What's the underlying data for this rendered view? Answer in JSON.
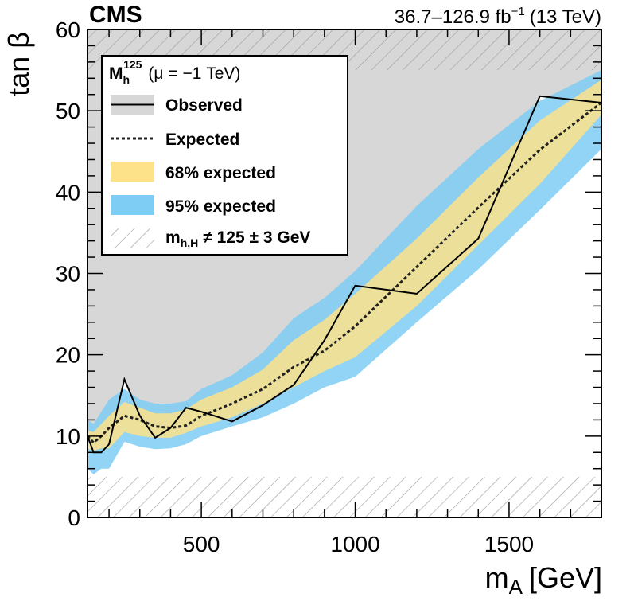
{
  "chart_data": {
    "type": "area",
    "experiment": "CMS",
    "lumi_energy": "36.7–126.9 fb",
    "lumi_exponent": "−1",
    "energy": "(13 TeV)",
    "xlabel_main": "m",
    "xlabel_sub": "A",
    "xlabel_unit": "[GeV]",
    "ylabel": "tan β",
    "xlim": [
      130,
      1800
    ],
    "ylim": [
      0,
      60
    ],
    "x_ticks": [
      500,
      1000,
      1500
    ],
    "y_ticks": [
      0,
      10,
      20,
      30,
      40,
      50,
      60
    ],
    "x_tick_labels": [
      "500",
      "1000",
      "1500"
    ],
    "y_tick_labels": [
      "0",
      "10",
      "20",
      "30",
      "40",
      "50",
      "60"
    ],
    "legend": {
      "scenario_main": "M",
      "scenario_sub": "h",
      "scenario_sup": "125",
      "scenario_param": "(μ = −1 TeV)",
      "observed": "Observed",
      "expected": "Expected",
      "band68": "68% expected",
      "band95": "95% expected",
      "hatched_main": "m",
      "hatched_sub": "h,H",
      "hatched_rest": "≠ 125 ± 3 GeV"
    },
    "colors": {
      "excluded": "#d7d7d7",
      "band68": "#fde28a",
      "band95": "#7ecdf5",
      "observed": "#000000",
      "expected": "#222222",
      "hatch": "#9a9a9a"
    },
    "hatched_regions": [
      {
        "name": "upper",
        "y_from_left": 55,
        "y_from_right": 55,
        "y_to": 60
      },
      {
        "name": "lower",
        "y_from": 0,
        "y_to": 5
      }
    ],
    "series": [
      {
        "name": "Observed",
        "x": [
          130,
          150,
          175,
          200,
          250,
          300,
          350,
          400,
          450,
          500,
          600,
          700,
          800,
          900,
          1000,
          1200,
          1400,
          1600,
          1800
        ],
        "values": [
          10,
          8,
          8,
          9,
          17,
          12.5,
          9.8,
          11,
          13.5,
          13,
          11.8,
          13.8,
          16.3,
          21.8,
          28.5,
          27.5,
          34.3,
          51.8,
          51
        ]
      },
      {
        "name": "Expected",
        "x": [
          130,
          150,
          175,
          200,
          250,
          300,
          350,
          400,
          450,
          500,
          600,
          700,
          800,
          900,
          1000,
          1200,
          1400,
          1600,
          1800
        ],
        "values": [
          10,
          9.2,
          10,
          11,
          12.5,
          12,
          11.2,
          11,
          11.3,
          12.5,
          14,
          15.8,
          18.5,
          20.5,
          23.5,
          30.8,
          38.1,
          45.2,
          51
        ]
      },
      {
        "name": "68% expected",
        "x": [
          130,
          150,
          175,
          200,
          250,
          300,
          350,
          400,
          450,
          500,
          600,
          700,
          800,
          900,
          1000,
          1200,
          1400,
          1600,
          1800
        ],
        "low": [
          8.5,
          8.2,
          8.5,
          8.5,
          10.5,
          10,
          9.8,
          9.8,
          10.4,
          11.2,
          12.3,
          14,
          16,
          18,
          19.7,
          26,
          33.5,
          41,
          49.5
        ],
        "high": [
          10.7,
          10.5,
          11.5,
          12.5,
          14.2,
          13.5,
          12.8,
          12.8,
          13.3,
          14.5,
          16,
          18.2,
          21.8,
          24.3,
          27.5,
          34.3,
          41.8,
          48.8,
          53.8
        ]
      },
      {
        "name": "95% expected",
        "x": [
          130,
          150,
          175,
          200,
          250,
          300,
          350,
          400,
          450,
          500,
          600,
          700,
          800,
          900,
          1000,
          1200,
          1400,
          1600,
          1800
        ],
        "low": [
          6,
          5.3,
          6,
          6,
          9.3,
          8.7,
          8.4,
          8.5,
          9,
          10,
          11.2,
          12.3,
          14,
          16,
          17.3,
          24,
          30.5,
          37.8,
          45.3
        ],
        "high": [
          12,
          11.5,
          13,
          14.5,
          15.8,
          14.5,
          14,
          14,
          14.3,
          15.8,
          17.5,
          20.3,
          24.5,
          27,
          30.3,
          38.3,
          45.3,
          51.2,
          55
        ]
      },
      {
        "name": "Excluded region",
        "x": [
          130,
          150,
          175,
          200,
          250,
          300,
          350,
          400,
          450,
          500,
          600,
          700,
          800,
          900,
          1000,
          1200,
          1400,
          1600,
          1800
        ],
        "from": [
          10,
          8,
          8,
          9,
          17,
          12.5,
          9.8,
          11,
          13.5,
          13,
          11.8,
          13.8,
          16.3,
          21.8,
          28.5,
          27.5,
          34.3,
          51.8,
          51
        ],
        "to": 60
      }
    ]
  }
}
